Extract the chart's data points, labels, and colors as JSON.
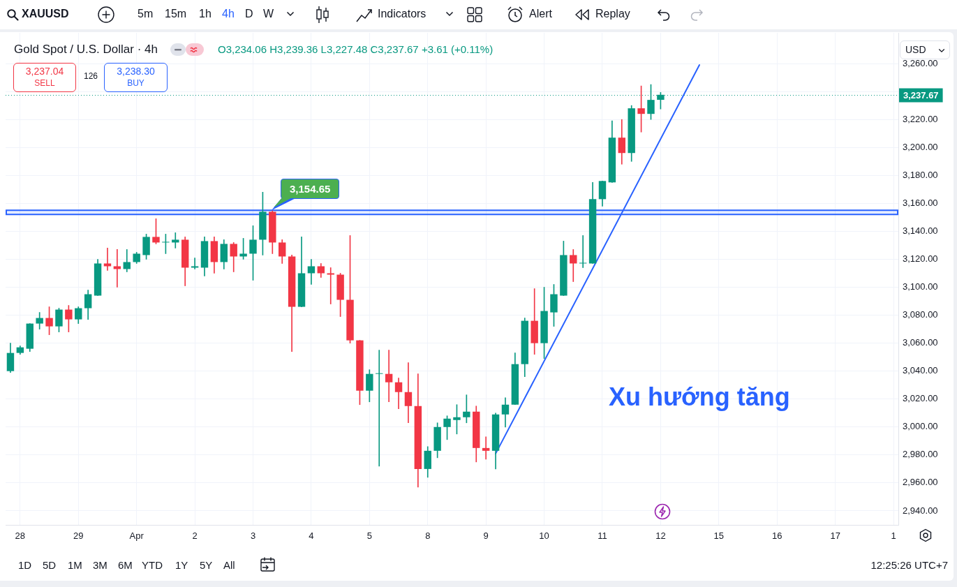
{
  "chart_data": {
    "type": "candlestick",
    "title": "Gold Spot / U.S. Dollar · 4h",
    "subtitle": "O3,234.06 H3,239.36 L3,227.48 C3,237.67 +3.61 (+0.11%)",
    "ylabel": "USD",
    "categories": [
      null,
      "28",
      null,
      null,
      null,
      null,
      null,
      "29",
      null,
      null,
      null,
      null,
      null,
      "Apr",
      null,
      null,
      null,
      null,
      null,
      "2",
      null,
      null,
      null,
      null,
      null,
      "3",
      null,
      null,
      null,
      null,
      null,
      "4",
      null,
      null,
      null,
      null,
      null,
      "5",
      null,
      null,
      null,
      null,
      null,
      "8",
      null,
      null,
      null,
      null,
      null,
      "9",
      null,
      null,
      null,
      null,
      null,
      "10",
      null,
      null,
      null,
      null,
      null,
      "11",
      null,
      null,
      null,
      null,
      null,
      "12",
      null,
      null,
      null,
      null,
      null,
      "15",
      null,
      null,
      null,
      null,
      null,
      "16",
      null,
      null,
      null,
      null,
      null,
      "17",
      null,
      null,
      null,
      null,
      null,
      "1"
    ],
    "series": [
      {
        "ohlc": [
          [
            3040,
            3060,
            3039,
            3053
          ],
          [
            3053,
            3058,
            3052,
            3057
          ],
          [
            3056,
            3074,
            3054,
            3074
          ],
          [
            3074,
            3082,
            3070,
            3078
          ],
          [
            3078,
            3086,
            3066,
            3072
          ],
          [
            3072,
            3085,
            3068,
            3084
          ],
          [
            3084,
            3087,
            3068,
            3077
          ],
          [
            3077,
            3086,
            3074,
            3085
          ],
          [
            3085,
            3098,
            3077,
            3095
          ],
          [
            3094,
            3120,
            3094,
            3117
          ],
          [
            3117,
            3128,
            3112,
            3115
          ],
          [
            3115,
            3127,
            3100,
            3113
          ],
          [
            3113,
            3127,
            3111,
            3118
          ],
          [
            3118,
            3125,
            3117,
            3124
          ],
          [
            3123,
            3138,
            3120,
            3136
          ],
          [
            3136,
            3149,
            3131,
            3132
          ],
          [
            3132,
            3138,
            3124,
            3132
          ],
          [
            3132,
            3139,
            3128,
            3134
          ],
          [
            3134,
            3136,
            3101,
            3114
          ],
          [
            3114,
            3121,
            3113,
            3115
          ],
          [
            3114,
            3136,
            3108,
            3133
          ],
          [
            3133,
            3136,
            3110,
            3118
          ],
          [
            3118,
            3134,
            3113,
            3131
          ],
          [
            3131,
            3132,
            3111,
            3122
          ],
          [
            3122,
            3135,
            3120,
            3124
          ],
          [
            3124,
            3144,
            3105,
            3134
          ],
          [
            3134,
            3168,
            3123,
            3154
          ],
          [
            3154,
            3154.65,
            3124,
            3132
          ],
          [
            3132,
            3134,
            3117,
            3122
          ],
          [
            3122,
            3123,
            3054,
            3086
          ],
          [
            3086,
            3136,
            3086,
            3110
          ],
          [
            3110,
            3120,
            3102,
            3115
          ],
          [
            3115,
            3117,
            3107,
            3110
          ],
          [
            3110,
            3114,
            3088,
            3109
          ],
          [
            3109,
            3110,
            3079,
            3091
          ],
          [
            3091,
            3137,
            3060,
            3062
          ],
          [
            3062,
            3062,
            3016,
            3026
          ],
          [
            3026,
            3041,
            3018,
            3038
          ],
          [
            3038,
            3055,
            2972,
            3038
          ],
          [
            3038,
            3055,
            3018,
            3032
          ],
          [
            3032,
            3035,
            3013,
            3025
          ],
          [
            3025,
            3046,
            3003,
            3015
          ],
          [
            3015,
            3038,
            2957,
            2970
          ],
          [
            2970,
            2986,
            2964,
            2983
          ],
          [
            2983,
            3003,
            2978,
            3000
          ],
          [
            3000,
            3008,
            2991,
            3006
          ],
          [
            3005,
            3016,
            2995,
            3007
          ],
          [
            3007,
            3023,
            3003,
            3011
          ],
          [
            3011,
            3015,
            2975,
            2985
          ],
          [
            2985,
            2993,
            2977,
            2983
          ],
          [
            2983,
            3010,
            2970,
            3009
          ],
          [
            3009,
            3021,
            3000,
            3016
          ],
          [
            3016,
            3053,
            3016,
            3045
          ],
          [
            3045,
            3078,
            3036,
            3076
          ],
          [
            3076,
            3099,
            3052,
            3060
          ],
          [
            3060,
            3100,
            3049,
            3083
          ],
          [
            3082,
            3102,
            3072,
            3095
          ],
          [
            3094,
            3133,
            3094,
            3123
          ],
          [
            3123,
            3127,
            3104,
            3117
          ],
          [
            3117,
            3137,
            3114,
            3117
          ],
          [
            3117,
            3175,
            3117,
            3163
          ],
          [
            3163,
            3176,
            3158,
            3176
          ],
          [
            3175,
            3219,
            3175,
            3207
          ],
          [
            3207,
            3220,
            3188,
            3196
          ],
          [
            3196,
            3230,
            3190,
            3228
          ],
          [
            3228,
            3244,
            3211,
            3224
          ],
          [
            3224,
            3245,
            3220,
            3234
          ],
          [
            3234.06,
            3239.36,
            3227.48,
            3237.67
          ],
          null,
          null,
          null,
          null,
          null,
          null,
          null,
          null,
          null,
          null,
          null,
          null,
          null,
          null,
          null,
          null,
          null,
          null,
          null,
          null,
          null,
          null,
          null,
          null
        ],
        "colors": [
          "#089981",
          "#089981",
          "#089981",
          "#089981",
          "#f23645",
          "#089981",
          "#f23645",
          "#089981",
          "#089981",
          "#089981",
          "#f23645",
          "#f23645",
          "#089981",
          "#089981",
          "#089981",
          "#f23645",
          "#089981",
          "#089981",
          "#f23645",
          "#089981",
          "#089981",
          "#f23645",
          "#089981",
          "#f23645",
          "#089981",
          "#089981",
          "#089981",
          "#f23645",
          "#f23645",
          "#f23645",
          "#089981",
          "#089981",
          "#f23645",
          "#f23645",
          "#f23645",
          "#f23645",
          "#f23645",
          "#089981",
          "#089981",
          "#f23645",
          "#f23645",
          "#f23645",
          "#f23645",
          "#089981",
          "#089981",
          "#089981",
          "#089981",
          "#089981",
          "#f23645",
          "#f23645",
          "#089981",
          "#089981",
          "#089981",
          "#089981",
          "#f23645",
          "#089981",
          "#089981",
          "#089981",
          "#f23645",
          "#089981",
          "#089981",
          "#089981",
          "#089981",
          "#f23645",
          "#089981",
          "#f23645",
          "#089981",
          "#089981",
          null,
          null,
          null,
          null,
          null,
          null,
          null,
          null,
          null,
          null,
          null,
          null,
          null,
          null,
          null,
          null,
          null,
          null,
          null,
          null,
          null,
          null,
          null,
          null
        ]
      },
      {
        "type": "line",
        "color": "#2962ff",
        "values": [
          null,
          null,
          null,
          null,
          null,
          null,
          null,
          null,
          null,
          null,
          null,
          null,
          null,
          null,
          null,
          null,
          null,
          null,
          null,
          null,
          null,
          null,
          null,
          null,
          null,
          null,
          null,
          null,
          null,
          null,
          null,
          null,
          null,
          null,
          null,
          null,
          null,
          null,
          null,
          null,
          null,
          null,
          null,
          null,
          null,
          null,
          null,
          null,
          null,
          null,
          2981,
          null,
          null,
          null,
          null,
          null,
          null,
          null,
          null,
          null,
          null,
          null,
          null,
          null,
          null,
          null,
          null,
          null,
          null,
          null,
          null,
          3259,
          null,
          null,
          null,
          null,
          null,
          null,
          null,
          null,
          null,
          null,
          null,
          null,
          null,
          null,
          null,
          null,
          null,
          null,
          null,
          null
        ]
      }
    ],
    "ylim": [
      2930,
      3282
    ],
    "yticks": [
      {
        "value": 2940,
        "label": "2,940.00"
      },
      {
        "value": 2960,
        "label": "2,960.00"
      },
      {
        "value": 2980,
        "label": "2,980.00"
      },
      {
        "value": 3000,
        "label": "3,000.00"
      },
      {
        "value": 3020,
        "label": "3,020.00"
      },
      {
        "value": 3040,
        "label": "3,040.00"
      },
      {
        "value": 3060,
        "label": "3,060.00"
      },
      {
        "value": 3080,
        "label": "3,080.00"
      },
      {
        "value": 3100,
        "label": "3,100.00"
      },
      {
        "value": 3120,
        "label": "3,120.00"
      },
      {
        "value": 3140,
        "label": "3,140.00"
      },
      {
        "value": 3160,
        "label": "3,160.00"
      },
      {
        "value": 3180,
        "label": "3,180.00"
      },
      {
        "value": 3200,
        "label": "3,200.00"
      },
      {
        "value": 3220,
        "label": "3,220.00"
      },
      {
        "value": 3240,
        "label": null
      },
      {
        "value": 3260,
        "label": "3,260.00"
      }
    ],
    "grid": true,
    "ref_lines": [
      {
        "axis": "y",
        "value": 3237.67,
        "label": "3,237.67",
        "color": "#089981",
        "line_style": "dotted"
      }
    ],
    "bands": [
      {
        "axis": "y",
        "from": 3152,
        "to": 3155,
        "color": "#2962ff"
      }
    ],
    "annotations": [
      "3,237.04",
      "SELL",
      "126",
      "3,238.30",
      "BUY",
      "Xu hướng tăng",
      "3,154.65",
      "XAUUSD",
      "5m",
      "15m",
      "1h",
      "4h",
      "D",
      "W",
      "Indicators",
      "Alert",
      "Replay",
      "1D",
      "5D",
      "1M",
      "3M",
      "6M",
      "YTD",
      "1Y",
      "5Y",
      "All",
      "12:25:26 UTC+7"
    ]
  }
}
